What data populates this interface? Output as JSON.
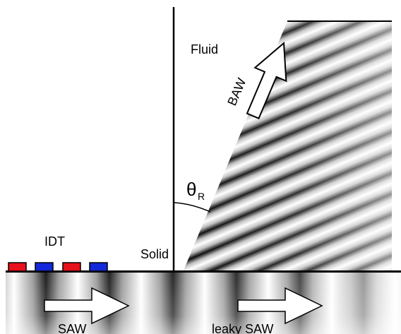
{
  "labels": {
    "fluid": "Fluid",
    "solid": "Solid",
    "idt": "IDT",
    "baw": "BAW",
    "saw": "SAW",
    "leaky_saw": "leaky SAW",
    "theta": "θ",
    "theta_sub": "R"
  },
  "colors": {
    "electrode_red": "#e8101c",
    "electrode_blue": "#1328d8",
    "line": "#000000",
    "wave_dark": "#0a0a0a",
    "wave_light": "#ffffff"
  },
  "electrodes": [
    "red",
    "blue",
    "red",
    "blue"
  ]
}
